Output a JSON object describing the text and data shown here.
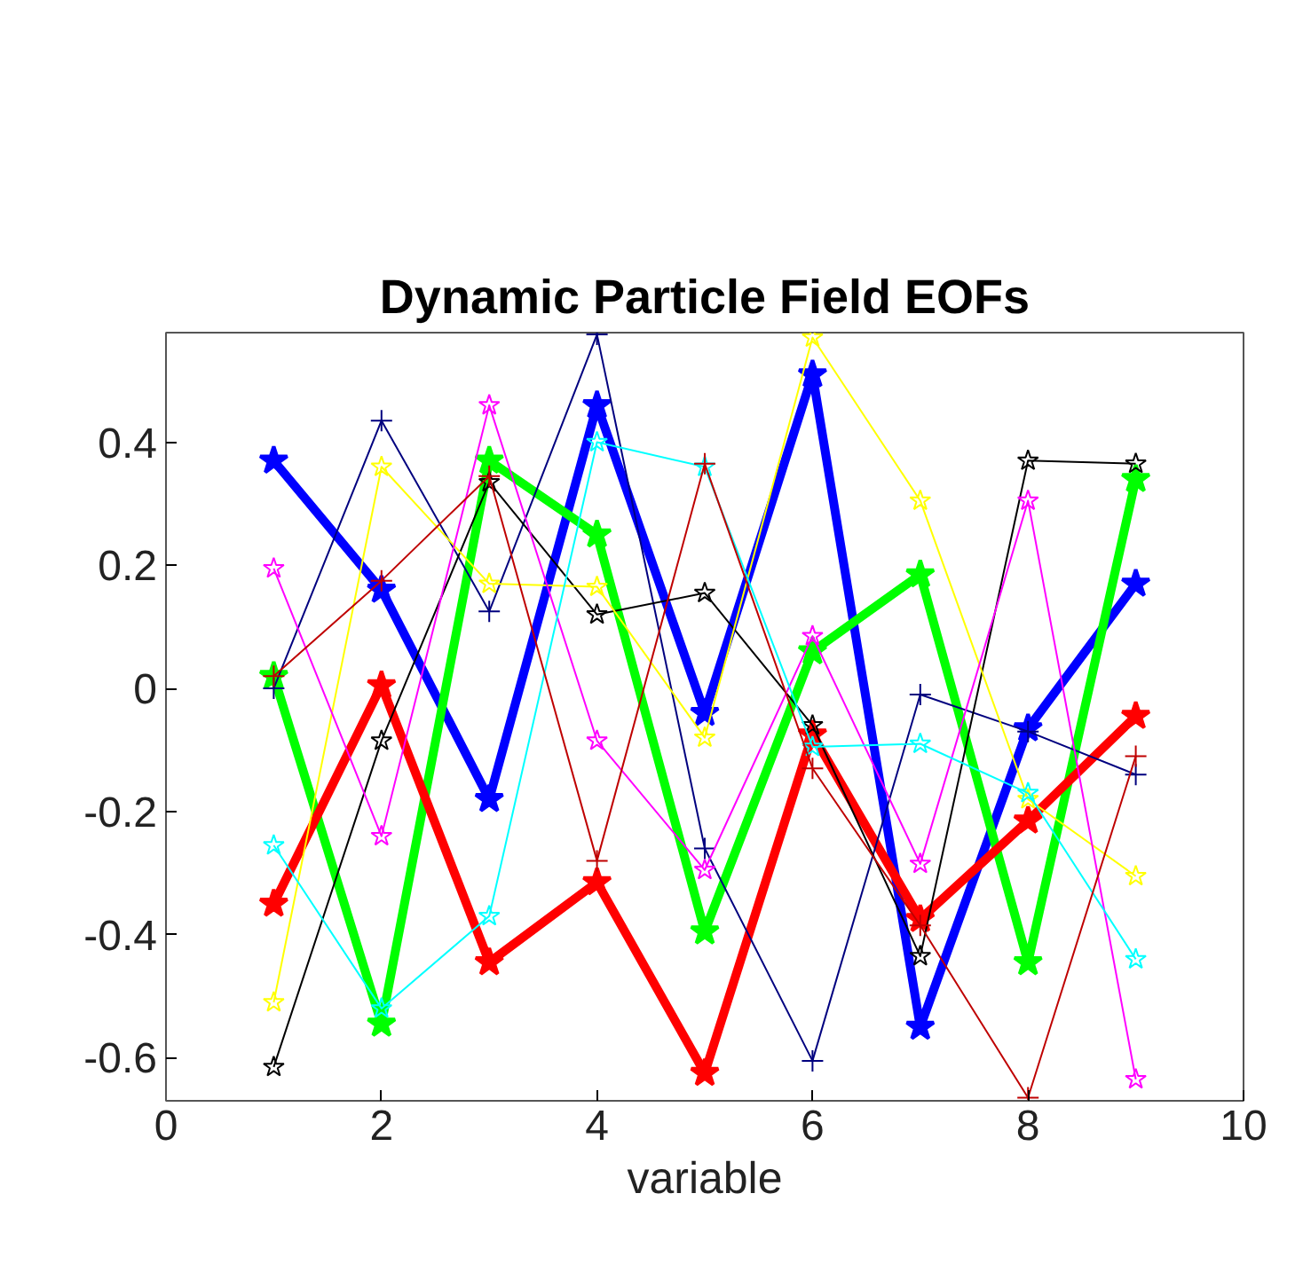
{
  "chart_data": {
    "type": "line",
    "title": "Dynamic Particle Field EOFs",
    "xlabel": "variable",
    "x": [
      1,
      2,
      3,
      4,
      5,
      6,
      7,
      8,
      9
    ],
    "xlim": [
      0,
      10
    ],
    "xticks": [
      0,
      2,
      4,
      6,
      8,
      10
    ],
    "ylim": [
      -0.67,
      0.578
    ],
    "yticks": [
      -0.6,
      -0.4,
      -0.2,
      0,
      0.2,
      0.4
    ],
    "grid": false,
    "series": [
      {
        "color": "#0000ff",
        "marker": "star",
        "values": [
          0.37,
          0.16,
          -0.18,
          0.46,
          -0.04,
          0.51,
          -0.55,
          -0.065,
          0.17
        ]
      },
      {
        "color": "#00ff00",
        "marker": "star",
        "values": [
          0.02,
          -0.545,
          0.37,
          0.25,
          -0.395,
          0.06,
          0.185,
          -0.445,
          0.34
        ]
      },
      {
        "color": "#ff0000",
        "marker": "star",
        "values": [
          -0.35,
          0.005,
          -0.445,
          -0.315,
          -0.625,
          -0.075,
          -0.375,
          -0.215,
          -0.045
        ]
      },
      {
        "color": "#00007f",
        "marker": "cross",
        "values": [
          0.0,
          0.435,
          0.125,
          0.575,
          -0.26,
          -0.605,
          -0.01,
          -0.07,
          -0.14
        ]
      },
      {
        "color": "#000000",
        "marker": "star",
        "values": [
          -0.615,
          -0.085,
          0.335,
          0.12,
          0.155,
          -0.06,
          -0.435,
          0.37,
          0.365
        ]
      },
      {
        "color": "#ffff00",
        "marker": "star",
        "values": [
          -0.51,
          0.36,
          0.17,
          0.165,
          -0.08,
          0.57,
          0.305,
          -0.18,
          -0.305
        ]
      },
      {
        "color": "#ff00ff",
        "marker": "star",
        "values": [
          0.195,
          -0.24,
          0.46,
          -0.085,
          -0.295,
          0.085,
          -0.285,
          0.305,
          -0.635
        ]
      },
      {
        "color": "#00ffff",
        "marker": "star",
        "values": [
          -0.255,
          -0.52,
          -0.37,
          0.4,
          0.36,
          -0.095,
          -0.09,
          -0.17,
          -0.44
        ]
      },
      {
        "color": "#bf0000",
        "marker": "cross",
        "values": [
          0.02,
          0.175,
          0.345,
          -0.28,
          0.365,
          -0.13,
          -0.385,
          -0.665,
          -0.11
        ]
      }
    ]
  }
}
